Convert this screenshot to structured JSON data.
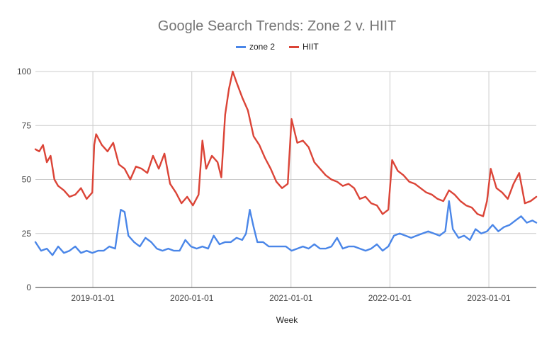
{
  "chart_data": {
    "type": "line",
    "title": "Google Search Trends: Zone 2 v. HIIT",
    "xlabel": "Week",
    "ylabel": "",
    "xlim": [
      "2018-06-03",
      "2023-06-25"
    ],
    "ylim": [
      0,
      100
    ],
    "y_ticks": [
      "0",
      "25",
      "50",
      "75",
      "100"
    ],
    "x_ticks": [
      {
        "date": "2019-01-01",
        "label": "2019-01-01"
      },
      {
        "date": "2020-01-01",
        "label": "2020-01-01"
      },
      {
        "date": "2021-01-01",
        "label": "2021-01-01"
      },
      {
        "date": "2022-01-01",
        "label": "2022-01-01"
      },
      {
        "date": "2023-01-01",
        "label": "2023-01-01"
      }
    ],
    "grid": true,
    "legend": "top-center",
    "series": [
      {
        "name": "zone 2",
        "color": "#4a86e8",
        "points": [
          [
            "2018-06-03",
            21
          ],
          [
            "2018-06-24",
            17
          ],
          [
            "2018-07-15",
            18
          ],
          [
            "2018-08-05",
            15
          ],
          [
            "2018-08-26",
            19
          ],
          [
            "2018-09-16",
            16
          ],
          [
            "2018-10-07",
            17
          ],
          [
            "2018-10-28",
            19
          ],
          [
            "2018-11-18",
            16
          ],
          [
            "2018-12-09",
            17
          ],
          [
            "2018-12-30",
            16
          ],
          [
            "2019-01-20",
            17
          ],
          [
            "2019-02-10",
            17
          ],
          [
            "2019-03-03",
            19
          ],
          [
            "2019-03-24",
            18
          ],
          [
            "2019-04-07",
            30
          ],
          [
            "2019-04-14",
            36
          ],
          [
            "2019-04-28",
            35
          ],
          [
            "2019-05-12",
            24
          ],
          [
            "2019-06-02",
            21
          ],
          [
            "2019-06-23",
            19
          ],
          [
            "2019-07-14",
            23
          ],
          [
            "2019-08-04",
            21
          ],
          [
            "2019-08-25",
            18
          ],
          [
            "2019-09-15",
            17
          ],
          [
            "2019-10-06",
            18
          ],
          [
            "2019-10-27",
            17
          ],
          [
            "2019-11-17",
            17
          ],
          [
            "2019-12-08",
            22
          ],
          [
            "2019-12-29",
            19
          ],
          [
            "2020-01-19",
            18
          ],
          [
            "2020-02-09",
            19
          ],
          [
            "2020-03-01",
            18
          ],
          [
            "2020-03-22",
            24
          ],
          [
            "2020-04-12",
            20
          ],
          [
            "2020-05-03",
            21
          ],
          [
            "2020-05-24",
            21
          ],
          [
            "2020-06-14",
            23
          ],
          [
            "2020-07-05",
            22
          ],
          [
            "2020-07-19",
            25
          ],
          [
            "2020-08-02",
            36
          ],
          [
            "2020-08-16",
            28
          ],
          [
            "2020-08-30",
            21
          ],
          [
            "2020-09-20",
            21
          ],
          [
            "2020-10-11",
            19
          ],
          [
            "2020-11-01",
            19
          ],
          [
            "2020-11-22",
            19
          ],
          [
            "2020-12-13",
            19
          ],
          [
            "2021-01-03",
            17
          ],
          [
            "2021-01-24",
            18
          ],
          [
            "2021-02-14",
            19
          ],
          [
            "2021-03-07",
            18
          ],
          [
            "2021-03-28",
            20
          ],
          [
            "2021-04-18",
            18
          ],
          [
            "2021-05-09",
            18
          ],
          [
            "2021-05-30",
            19
          ],
          [
            "2021-06-20",
            23
          ],
          [
            "2021-07-11",
            18
          ],
          [
            "2021-08-01",
            19
          ],
          [
            "2021-08-22",
            19
          ],
          [
            "2021-09-12",
            18
          ],
          [
            "2021-10-03",
            17
          ],
          [
            "2021-10-24",
            18
          ],
          [
            "2021-11-14",
            20
          ],
          [
            "2021-12-05",
            17
          ],
          [
            "2021-12-26",
            19
          ],
          [
            "2022-01-16",
            24
          ],
          [
            "2022-02-06",
            25
          ],
          [
            "2022-02-27",
            24
          ],
          [
            "2022-03-20",
            23
          ],
          [
            "2022-04-10",
            24
          ],
          [
            "2022-05-01",
            25
          ],
          [
            "2022-05-22",
            26
          ],
          [
            "2022-06-12",
            25
          ],
          [
            "2022-07-03",
            24
          ],
          [
            "2022-07-24",
            26
          ],
          [
            "2022-08-07",
            40
          ],
          [
            "2022-08-21",
            27
          ],
          [
            "2022-09-11",
            23
          ],
          [
            "2022-10-02",
            24
          ],
          [
            "2022-10-23",
            22
          ],
          [
            "2022-11-13",
            27
          ],
          [
            "2022-12-04",
            25
          ],
          [
            "2022-12-25",
            26
          ],
          [
            "2023-01-15",
            29
          ],
          [
            "2023-02-05",
            26
          ],
          [
            "2023-02-26",
            28
          ],
          [
            "2023-03-19",
            29
          ],
          [
            "2023-04-09",
            31
          ],
          [
            "2023-04-30",
            33
          ],
          [
            "2023-05-21",
            30
          ],
          [
            "2023-06-11",
            31
          ],
          [
            "2023-06-25",
            30
          ]
        ]
      },
      {
        "name": "HIIT",
        "color": "#db4437",
        "points": [
          [
            "2018-06-03",
            64
          ],
          [
            "2018-06-17",
            63
          ],
          [
            "2018-07-01",
            66
          ],
          [
            "2018-07-15",
            58
          ],
          [
            "2018-07-29",
            61
          ],
          [
            "2018-08-12",
            50
          ],
          [
            "2018-08-26",
            47
          ],
          [
            "2018-09-16",
            45
          ],
          [
            "2018-10-07",
            42
          ],
          [
            "2018-10-28",
            43
          ],
          [
            "2018-11-18",
            46
          ],
          [
            "2018-12-09",
            41
          ],
          [
            "2018-12-30",
            44
          ],
          [
            "2019-01-06",
            66
          ],
          [
            "2019-01-13",
            71
          ],
          [
            "2019-02-03",
            66
          ],
          [
            "2019-02-24",
            63
          ],
          [
            "2019-03-17",
            67
          ],
          [
            "2019-04-07",
            57
          ],
          [
            "2019-04-28",
            55
          ],
          [
            "2019-05-19",
            50
          ],
          [
            "2019-06-09",
            56
          ],
          [
            "2019-06-30",
            55
          ],
          [
            "2019-07-21",
            53
          ],
          [
            "2019-08-11",
            61
          ],
          [
            "2019-09-01",
            55
          ],
          [
            "2019-09-22",
            62
          ],
          [
            "2019-10-13",
            48
          ],
          [
            "2019-11-03",
            44
          ],
          [
            "2019-11-24",
            39
          ],
          [
            "2019-12-15",
            42
          ],
          [
            "2020-01-05",
            38
          ],
          [
            "2020-01-26",
            43
          ],
          [
            "2020-02-09",
            68
          ],
          [
            "2020-02-23",
            55
          ],
          [
            "2020-03-15",
            61
          ],
          [
            "2020-04-05",
            58
          ],
          [
            "2020-04-19",
            51
          ],
          [
            "2020-05-03",
            80
          ],
          [
            "2020-05-17",
            92
          ],
          [
            "2020-05-31",
            100
          ],
          [
            "2020-06-14",
            95
          ],
          [
            "2020-07-05",
            88
          ],
          [
            "2020-07-26",
            82
          ],
          [
            "2020-08-16",
            70
          ],
          [
            "2020-09-06",
            66
          ],
          [
            "2020-09-27",
            60
          ],
          [
            "2020-10-18",
            55
          ],
          [
            "2020-11-08",
            49
          ],
          [
            "2020-11-29",
            46
          ],
          [
            "2020-12-20",
            48
          ],
          [
            "2021-01-03",
            78
          ],
          [
            "2021-01-24",
            67
          ],
          [
            "2021-02-14",
            68
          ],
          [
            "2021-03-07",
            65
          ],
          [
            "2021-03-28",
            58
          ],
          [
            "2021-04-18",
            55
          ],
          [
            "2021-05-09",
            52
          ],
          [
            "2021-05-30",
            50
          ],
          [
            "2021-06-20",
            49
          ],
          [
            "2021-07-11",
            47
          ],
          [
            "2021-08-01",
            48
          ],
          [
            "2021-08-22",
            46
          ],
          [
            "2021-09-12",
            41
          ],
          [
            "2021-10-03",
            42
          ],
          [
            "2021-10-24",
            39
          ],
          [
            "2021-11-14",
            38
          ],
          [
            "2021-12-05",
            34
          ],
          [
            "2021-12-26",
            36
          ],
          [
            "2022-01-09",
            59
          ],
          [
            "2022-01-30",
            54
          ],
          [
            "2022-02-20",
            52
          ],
          [
            "2022-03-13",
            49
          ],
          [
            "2022-04-03",
            48
          ],
          [
            "2022-04-24",
            46
          ],
          [
            "2022-05-15",
            44
          ],
          [
            "2022-06-05",
            43
          ],
          [
            "2022-06-26",
            41
          ],
          [
            "2022-07-17",
            40
          ],
          [
            "2022-08-07",
            45
          ],
          [
            "2022-08-28",
            43
          ],
          [
            "2022-09-18",
            40
          ],
          [
            "2022-10-09",
            38
          ],
          [
            "2022-10-30",
            37
          ],
          [
            "2022-11-20",
            34
          ],
          [
            "2022-12-11",
            33
          ],
          [
            "2022-12-25",
            40
          ],
          [
            "2023-01-08",
            55
          ],
          [
            "2023-01-29",
            46
          ],
          [
            "2023-02-19",
            44
          ],
          [
            "2023-03-12",
            41
          ],
          [
            "2023-04-02",
            48
          ],
          [
            "2023-04-23",
            53
          ],
          [
            "2023-05-14",
            39
          ],
          [
            "2023-06-04",
            40
          ],
          [
            "2023-06-25",
            42
          ]
        ]
      }
    ]
  }
}
